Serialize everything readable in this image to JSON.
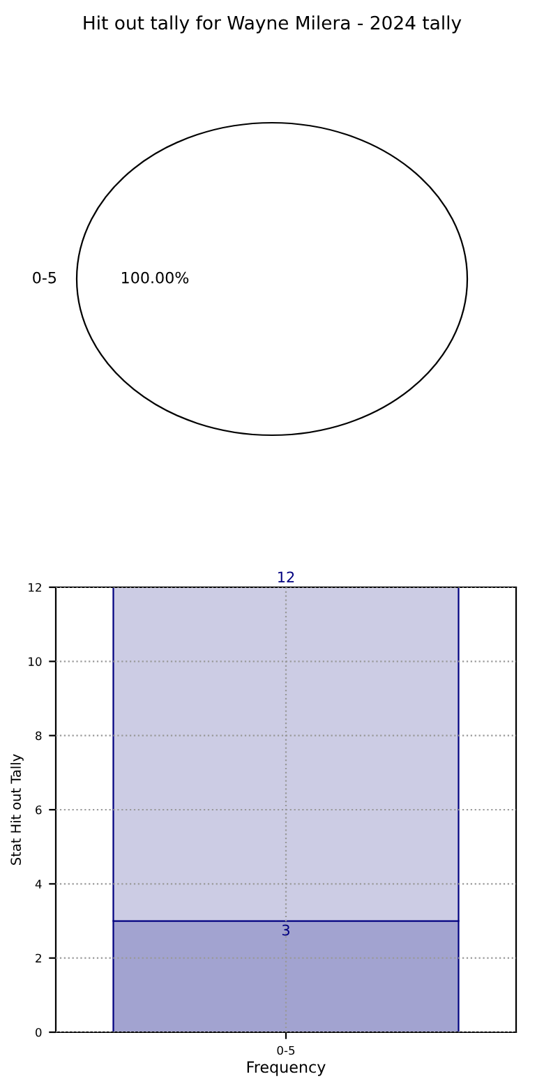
{
  "chart_data": [
    {
      "type": "pie",
      "title": "Hit out tally for Wayne Milera - 2024 tally",
      "categories": [
        "0-5"
      ],
      "values": [
        100
      ],
      "colors": [
        "#ffffff"
      ],
      "value_labels": [
        "100.00%"
      ]
    },
    {
      "type": "bar",
      "xlabel": "Frequency",
      "ylabel": "Stat Hit out Tally",
      "categories": [
        "0-5"
      ],
      "series": [
        {
          "color": "#a2a3d0",
          "values": [
            3
          ],
          "value_labels": [
            "3"
          ]
        },
        {
          "color": "#ccccE4",
          "values": [
            9
          ]
        }
      ],
      "totals": [
        "12"
      ],
      "stacked": true,
      "ylim": [
        0,
        12
      ],
      "yticks": [
        0,
        2,
        4,
        6,
        8,
        10,
        12
      ],
      "grid": true
    }
  ]
}
